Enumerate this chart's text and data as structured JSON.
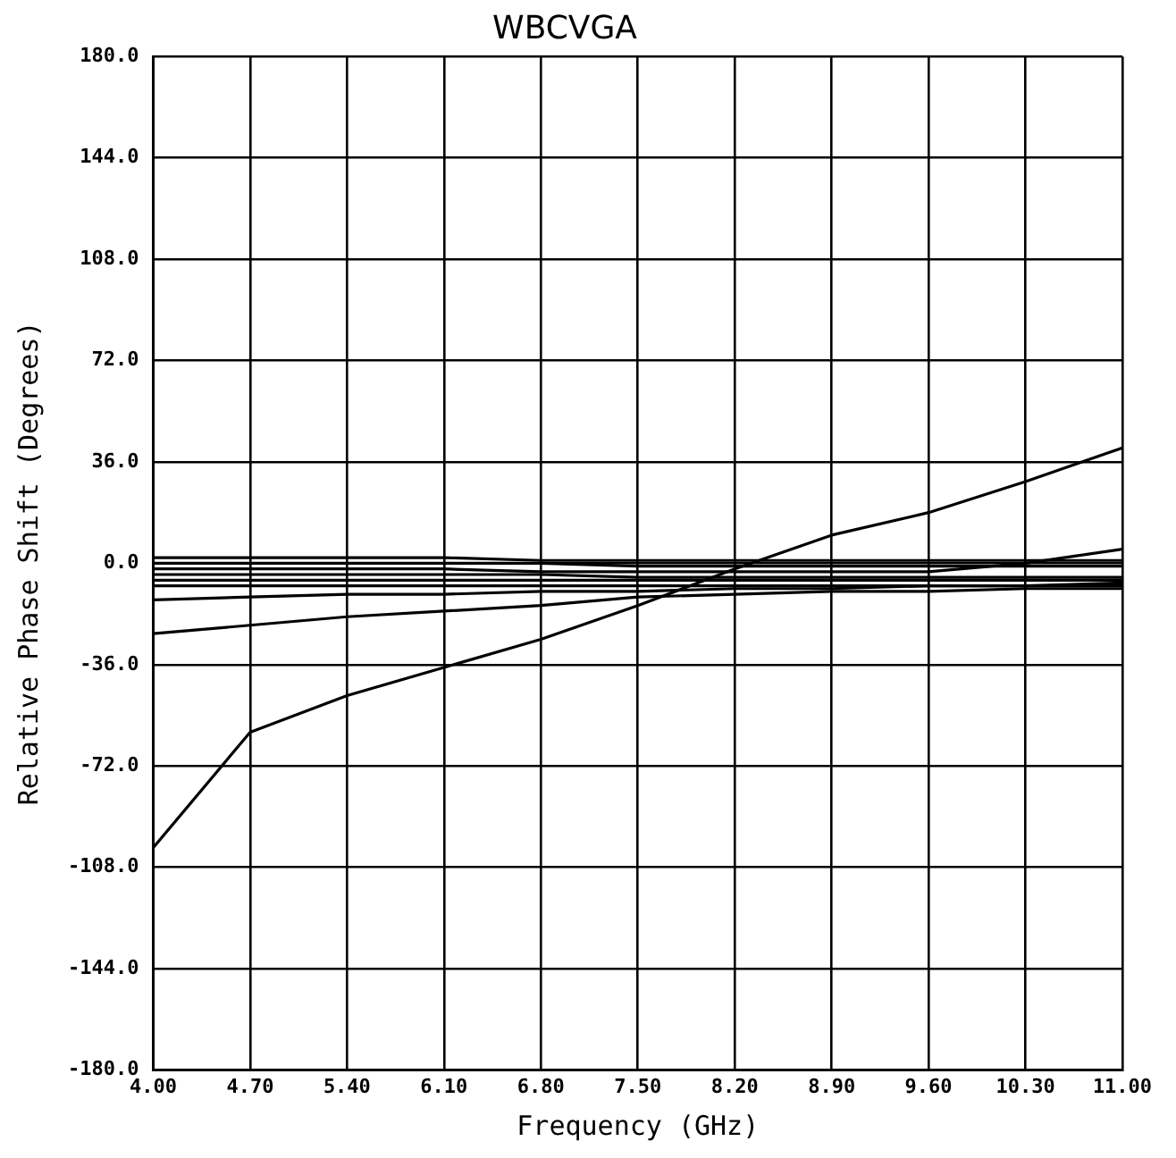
{
  "chart_data": {
    "type": "line",
    "title": "WBCVGA",
    "xlabel": "Frequency (GHz)",
    "ylabel": "Relative Phase Shift (Degrees)",
    "x": [
      4,
      4.7,
      5.4,
      6.1,
      6.8,
      7.5,
      8.2,
      8.9,
      9.6,
      10.3,
      11
    ],
    "series": [
      {
        "color": "#000000",
        "values": [
          -101,
          -60,
          -47,
          -37,
          -27,
          -15,
          -2,
          10,
          18,
          29,
          41
        ]
      },
      {
        "color": "#000000",
        "values": [
          -13,
          -12,
          -11,
          -11,
          -10,
          -10,
          -9,
          -9,
          -8,
          -8,
          -7
        ]
      },
      {
        "color": "#000000",
        "values": [
          -25,
          -22,
          -19,
          -17,
          -15,
          -12,
          -11,
          -10,
          -10,
          -9,
          -9
        ]
      },
      {
        "color": "#000000",
        "values": [
          -2,
          -2,
          -2,
          -2,
          -3,
          -3,
          -3,
          -3,
          -3,
          0,
          5
        ]
      },
      {
        "color": "#000000",
        "values": [
          2,
          2,
          2,
          2,
          1,
          1,
          1,
          1,
          1,
          1,
          1
        ]
      },
      {
        "color": "#000000",
        "values": [
          0,
          0,
          0,
          0,
          0,
          -1,
          -1,
          -1,
          -1,
          -1,
          -1
        ]
      },
      {
        "color": "#000000",
        "values": [
          -4,
          -4,
          -4,
          -4,
          -4,
          -5,
          -5,
          -5,
          -5,
          -5,
          -5
        ]
      },
      {
        "color": "#000000",
        "values": [
          -6,
          -6,
          -6,
          -6,
          -6,
          -6,
          -6,
          -6,
          -6,
          -6,
          -6
        ]
      },
      {
        "color": "#000000",
        "values": [
          -8,
          -8,
          -8,
          -8,
          -8,
          -8,
          -8,
          -8,
          -8,
          -8,
          -8
        ]
      }
    ],
    "xlim": [
      4,
      11
    ],
    "xticks": [
      {
        "value": 4,
        "label": "4.00"
      },
      {
        "value": 4.7,
        "label": "4.70"
      },
      {
        "value": 5.4,
        "label": "5.40"
      },
      {
        "value": 6.1,
        "label": "6.10"
      },
      {
        "value": 6.8,
        "label": "6.80"
      },
      {
        "value": 7.5,
        "label": "7.50"
      },
      {
        "value": 8.2,
        "label": "8.20"
      },
      {
        "value": 8.9,
        "label": "8.90"
      },
      {
        "value": 9.6,
        "label": "9.60"
      },
      {
        "value": 10.3,
        "label": "10.30"
      },
      {
        "value": 11,
        "label": "11.00"
      }
    ],
    "ylim": [
      -180,
      180
    ],
    "yticks": [
      {
        "value": -180,
        "label": "-180.0"
      },
      {
        "value": -144,
        "label": "-144.0"
      },
      {
        "value": -108,
        "label": "-108.0"
      },
      {
        "value": -72,
        "label": "-72.0"
      },
      {
        "value": -36,
        "label": "-36.0"
      },
      {
        "value": 0,
        "label": "0.0"
      },
      {
        "value": 36,
        "label": "36.0"
      },
      {
        "value": 72,
        "label": "72.0"
      },
      {
        "value": 108,
        "label": "108.0"
      },
      {
        "value": 144,
        "label": "144.0"
      },
      {
        "value": 180,
        "label": "180.0"
      }
    ],
    "grid": true,
    "marker": "none",
    "line_style": "solid"
  }
}
